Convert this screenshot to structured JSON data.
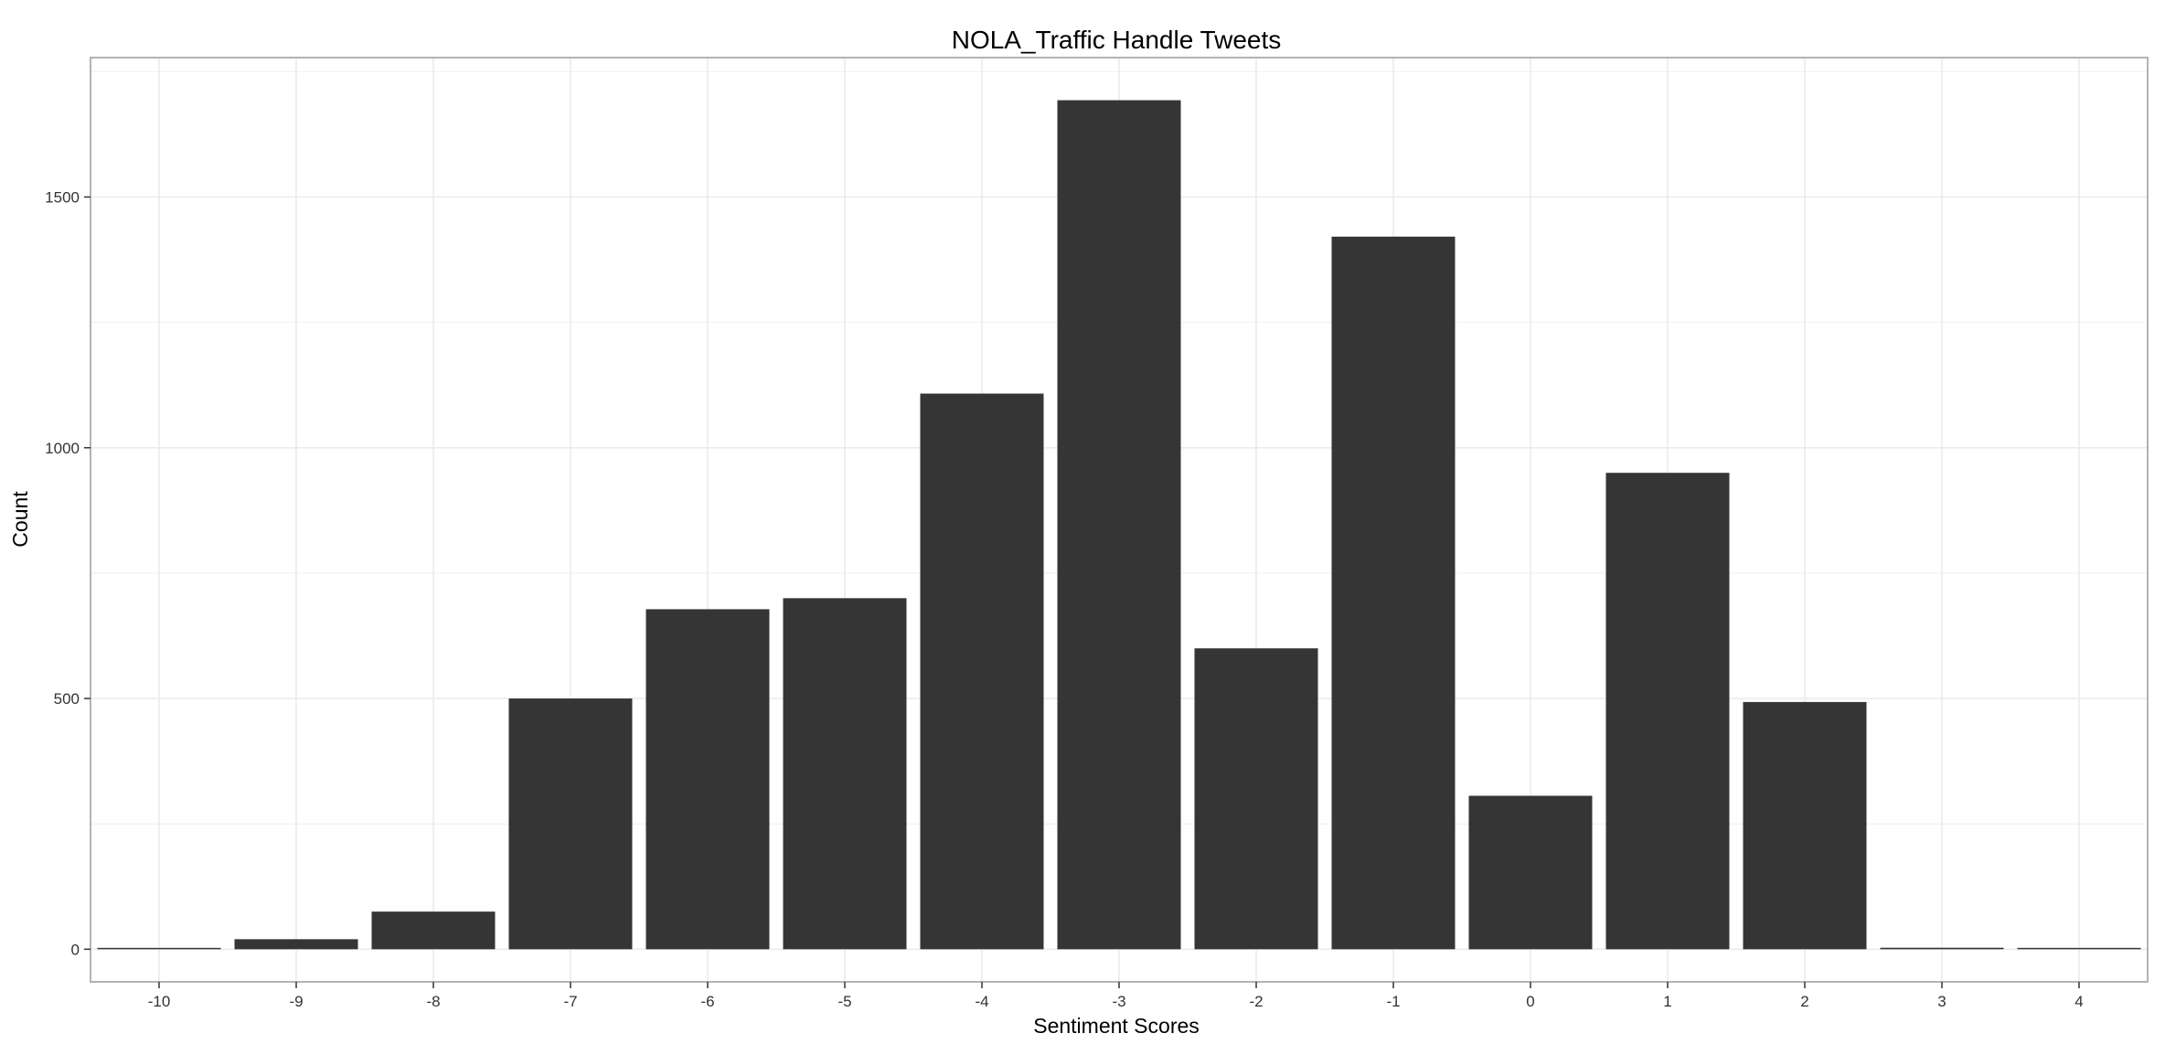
{
  "chart_data": {
    "type": "bar",
    "title": "NOLA_Traffic Handle Tweets",
    "xlabel": "Sentiment Scores",
    "ylabel": "Count",
    "categories": [
      "-10",
      "-9",
      "-8",
      "-7",
      "-6",
      "-5",
      "-4",
      "-3",
      "-2",
      "-1",
      "0",
      "1",
      "2",
      "3",
      "4"
    ],
    "values": [
      1,
      20,
      75,
      500,
      678,
      700,
      1108,
      1693,
      600,
      1421,
      306,
      950,
      493,
      3,
      1
    ],
    "ylim": [
      -65,
      1778
    ],
    "yticks": [
      0,
      500,
      1000,
      1500
    ],
    "grid": true,
    "legend": "none",
    "colors": {
      "bar": "#353535",
      "panel_border": "#b3b3b3",
      "grid": "#ebebeb"
    }
  }
}
